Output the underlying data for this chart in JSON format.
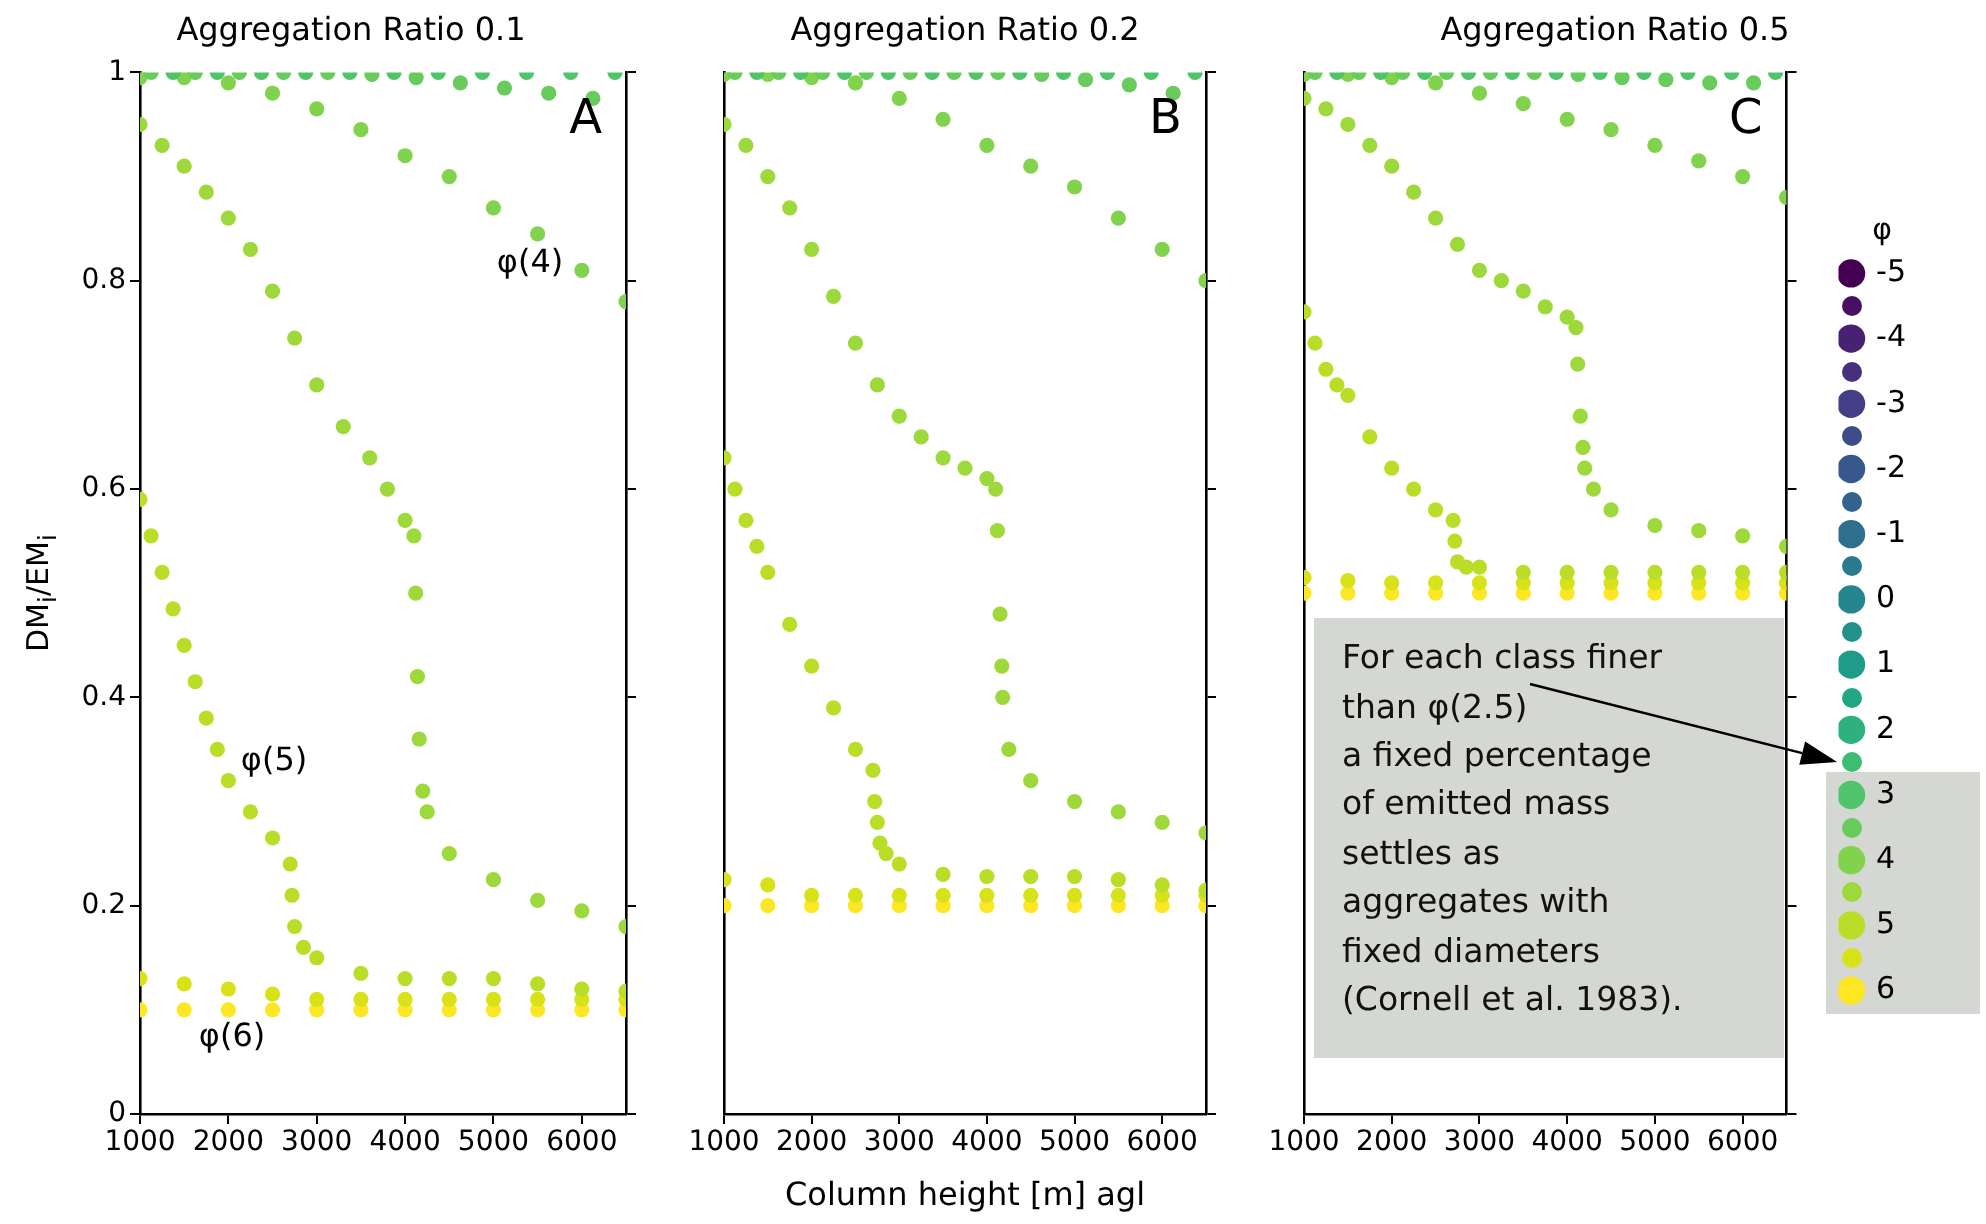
{
  "chart_data": [
    {
      "type": "scatter",
      "title": "Aggregation Ratio 0.1",
      "ylabel": "DM$_{i}$/EM$_{i}$",
      "x": [
        1000,
        1500,
        2000,
        2500,
        3000,
        3500,
        4000,
        4500,
        5000,
        5500,
        6000,
        6500
      ],
      "xlim": [
        1000,
        6500
      ],
      "xticks": [
        1000,
        2000,
        3000,
        4000,
        5000,
        6000
      ],
      "ylim": [
        0,
        1
      ],
      "yticks": [
        0.0,
        0.2,
        0.4,
        0.6,
        0.8,
        1.0
      ],
      "marker": "circle",
      "annotations": [
        "A",
        "φ(4)",
        "φ(5)",
        "φ(6)"
      ],
      "series": [
        {
          "color": "#50c46a",
          "x": [
            1375,
            1875,
            2375,
            2875,
            3375,
            3875,
            4375,
            4875,
            5375,
            5875,
            6375
          ],
          "values": [
            1,
            1,
            1,
            1,
            1,
            1,
            1,
            1,
            1,
            1,
            1
          ]
        },
        {
          "color": "#67cc5c",
          "x": [
            1125,
            1625,
            2125,
            2625,
            3125,
            3625,
            4125,
            4625,
            5125,
            5625,
            6125
          ],
          "values": [
            1,
            1,
            1,
            1,
            1,
            0.998,
            0.995,
            0.99,
            0.985,
            0.98,
            0.975
          ]
        },
        {
          "color": "#81d34d",
          "values": [
            0.995,
            0.995,
            0.99,
            0.98,
            0.965,
            0.945,
            0.92,
            0.9,
            0.87,
            0.845,
            0.81,
            0.78
          ]
        },
        {
          "color": "#9dd93b",
          "x": [
            1000,
            1250,
            1500,
            1750,
            2000,
            2250,
            2500,
            2750,
            3000,
            3300,
            3600,
            3800,
            4000,
            4100,
            4120,
            4140,
            4160,
            4200,
            4250,
            4500,
            5000,
            5500,
            6000,
            6500
          ],
          "values": [
            0.95,
            0.93,
            0.91,
            0.885,
            0.86,
            0.83,
            0.79,
            0.745,
            0.7,
            0.66,
            0.63,
            0.6,
            0.57,
            0.555,
            0.5,
            0.42,
            0.36,
            0.31,
            0.29,
            0.25,
            0.225,
            0.205,
            0.195,
            0.18
          ]
        },
        {
          "color": "#bade28",
          "x": [
            1000,
            1125,
            1250,
            1375,
            1500,
            1625,
            1750,
            1875,
            2000,
            2250,
            2500,
            2700,
            2720,
            2750,
            2850,
            3000,
            3500,
            4000,
            4500,
            5000,
            5500,
            6000,
            6500
          ],
          "values": [
            0.59,
            0.555,
            0.52,
            0.485,
            0.45,
            0.415,
            0.38,
            0.35,
            0.32,
            0.29,
            0.265,
            0.24,
            0.21,
            0.18,
            0.16,
            0.15,
            0.135,
            0.13,
            0.13,
            0.13,
            0.125,
            0.12,
            0.118
          ]
        },
        {
          "color": "#d8e219",
          "values": [
            0.13,
            0.125,
            0.12,
            0.115,
            0.11,
            0.11,
            0.11,
            0.11,
            0.11,
            0.11,
            0.11,
            0.11
          ]
        },
        {
          "color": "#fde725",
          "values": [
            0.1,
            0.1,
            0.1,
            0.1,
            0.1,
            0.1,
            0.1,
            0.1,
            0.1,
            0.1,
            0.1,
            0.1
          ]
        }
      ]
    },
    {
      "type": "scatter",
      "title": "Aggregation Ratio 0.2",
      "xlabel": "Column height [m] agl",
      "x": [
        1000,
        1500,
        2000,
        2500,
        3000,
        3500,
        4000,
        4500,
        5000,
        5500,
        6000,
        6500
      ],
      "xlim": [
        1000,
        6500
      ],
      "xticks": [
        1000,
        2000,
        3000,
        4000,
        5000,
        6000
      ],
      "ylim": [
        0,
        1
      ],
      "yticks": [
        0.0,
        0.2,
        0.4,
        0.6,
        0.8,
        1.0
      ],
      "tick_labels": "x",
      "marker": "circle",
      "annotations": [
        "B"
      ],
      "series": [
        {
          "color": "#50c46a",
          "x": [
            1375,
            1875,
            2375,
            2875,
            3375,
            3875,
            4375,
            4875,
            5375,
            5875,
            6375
          ],
          "values": [
            1,
            1,
            1,
            1,
            1,
            1,
            1,
            1,
            1,
            1,
            1
          ]
        },
        {
          "color": "#67cc5c",
          "x": [
            1125,
            1625,
            2125,
            2625,
            3125,
            3625,
            4125,
            4625,
            5125,
            5625,
            6125
          ],
          "values": [
            1,
            1,
            1,
            1,
            1,
            1,
            1,
            0.998,
            0.993,
            0.988,
            0.98
          ]
        },
        {
          "color": "#81d34d",
          "values": [
            0.998,
            0.998,
            0.995,
            0.99,
            0.975,
            0.955,
            0.93,
            0.91,
            0.89,
            0.86,
            0.83,
            0.8
          ]
        },
        {
          "color": "#9dd93b",
          "x": [
            1000,
            1250,
            1500,
            1750,
            2000,
            2250,
            2500,
            2750,
            3000,
            3250,
            3500,
            3750,
            4000,
            4100,
            4120,
            4150,
            4170,
            4180,
            4250,
            4500,
            5000,
            5500,
            6000,
            6500
          ],
          "values": [
            0.95,
            0.93,
            0.9,
            0.87,
            0.83,
            0.785,
            0.74,
            0.7,
            0.67,
            0.65,
            0.63,
            0.62,
            0.61,
            0.6,
            0.56,
            0.48,
            0.43,
            0.4,
            0.35,
            0.32,
            0.3,
            0.29,
            0.28,
            0.27
          ]
        },
        {
          "color": "#bade28",
          "x": [
            1000,
            1125,
            1250,
            1375,
            1500,
            1750,
            2000,
            2250,
            2500,
            2700,
            2720,
            2750,
            2780,
            2850,
            3000,
            3500,
            4000,
            4500,
            5000,
            5500,
            6000,
            6500
          ],
          "values": [
            0.63,
            0.6,
            0.57,
            0.545,
            0.52,
            0.47,
            0.43,
            0.39,
            0.35,
            0.33,
            0.3,
            0.28,
            0.26,
            0.25,
            0.24,
            0.23,
            0.228,
            0.228,
            0.228,
            0.225,
            0.22,
            0.215
          ]
        },
        {
          "color": "#d8e219",
          "values": [
            0.225,
            0.22,
            0.21,
            0.21,
            0.21,
            0.21,
            0.21,
            0.21,
            0.21,
            0.21,
            0.21,
            0.21
          ]
        },
        {
          "color": "#fde725",
          "values": [
            0.2,
            0.2,
            0.2,
            0.2,
            0.2,
            0.2,
            0.2,
            0.2,
            0.2,
            0.2,
            0.2,
            0.2
          ]
        }
      ]
    },
    {
      "type": "scatter",
      "title": "Aggregation Ratio 0.5",
      "x": [
        1000,
        1500,
        2000,
        2500,
        3000,
        3500,
        4000,
        4500,
        5000,
        5500,
        6000,
        6500
      ],
      "xlim": [
        1000,
        6500
      ],
      "xticks": [
        1000,
        2000,
        3000,
        4000,
        5000,
        6000
      ],
      "ylim": [
        0,
        1
      ],
      "yticks": [
        0.0,
        0.2,
        0.4,
        0.6,
        0.8,
        1.0
      ],
      "tick_labels": "x",
      "marker": "circle",
      "legend": "right",
      "legend_title": "φ",
      "annotations": [
        "C",
        "For each class finer\nthan φ(2.5)\na fixed percentage\nof emitted mass\nsettles as\naggregates with\nfixed diameters\n(Cornell et al. 1983)."
      ],
      "series": [
        {
          "name": "-5",
          "color": "#440154",
          "values": [
            null,
            null,
            null,
            null,
            null,
            null,
            null,
            null,
            null,
            null,
            null,
            null
          ]
        },
        {
          "color": "#471063",
          "values": [
            null,
            null,
            null,
            null,
            null,
            null,
            null,
            null,
            null,
            null,
            null,
            null
          ]
        },
        {
          "name": "-4",
          "color": "#482173",
          "values": [
            null,
            null,
            null,
            null,
            null,
            null,
            null,
            null,
            null,
            null,
            null,
            null
          ]
        },
        {
          "color": "#46307e",
          "values": [
            null,
            null,
            null,
            null,
            null,
            null,
            null,
            null,
            null,
            null,
            null,
            null
          ]
        },
        {
          "name": "-3",
          "color": "#433e85",
          "values": [
            null,
            null,
            null,
            null,
            null,
            null,
            null,
            null,
            null,
            null,
            null,
            null
          ]
        },
        {
          "color": "#3e4c8a",
          "values": [
            null,
            null,
            null,
            null,
            null,
            null,
            null,
            null,
            null,
            null,
            null,
            null
          ]
        },
        {
          "name": "-2",
          "color": "#38588c",
          "values": [
            null,
            null,
            null,
            null,
            null,
            null,
            null,
            null,
            null,
            null,
            null,
            null
          ]
        },
        {
          "color": "#33638d",
          "values": [
            null,
            null,
            null,
            null,
            null,
            null,
            null,
            null,
            null,
            null,
            null,
            null
          ]
        },
        {
          "name": "-1",
          "color": "#2e6f8e",
          "values": [
            null,
            null,
            null,
            null,
            null,
            null,
            null,
            null,
            null,
            null,
            null,
            null
          ]
        },
        {
          "color": "#297a8e",
          "values": [
            null,
            null,
            null,
            null,
            null,
            null,
            null,
            null,
            null,
            null,
            null,
            null
          ]
        },
        {
          "name": "0",
          "color": "#25858e",
          "values": [
            null,
            null,
            null,
            null,
            null,
            null,
            null,
            null,
            null,
            null,
            null,
            null
          ]
        },
        {
          "color": "#21918c",
          "values": [
            null,
            null,
            null,
            null,
            null,
            null,
            null,
            null,
            null,
            null,
            null,
            null
          ]
        },
        {
          "name": "1",
          "color": "#1f9c89",
          "values": [
            null,
            null,
            null,
            null,
            null,
            null,
            null,
            null,
            null,
            null,
            null,
            null
          ]
        },
        {
          "color": "#22a785",
          "values": [
            null,
            null,
            null,
            null,
            null,
            null,
            null,
            null,
            null,
            null,
            null,
            null
          ]
        },
        {
          "name": "2",
          "color": "#2db27d",
          "values": [
            null,
            null,
            null,
            null,
            null,
            null,
            null,
            null,
            null,
            null,
            null,
            null
          ]
        },
        {
          "color": "#3dbc74",
          "values": [
            null,
            null,
            null,
            null,
            null,
            null,
            null,
            null,
            null,
            null,
            null,
            null
          ]
        },
        {
          "name": "3",
          "color": "#50c46a",
          "x": [
            1375,
            1875,
            2375,
            2875,
            3375,
            3875,
            4375,
            4875,
            5375,
            5875,
            6375
          ],
          "values": [
            1,
            1,
            1,
            1,
            1,
            1,
            1,
            1,
            1,
            1,
            1
          ]
        },
        {
          "color": "#67cc5c",
          "x": [
            1125,
            1625,
            2125,
            2625,
            3125,
            3625,
            4125,
            4625,
            5125,
            5625,
            6125
          ],
          "values": [
            1,
            1,
            1,
            1,
            1,
            1,
            0.998,
            0.995,
            0.993,
            0.99,
            0.99
          ]
        },
        {
          "name": "4",
          "color": "#81d34d",
          "values": [
            0.998,
            0.998,
            0.995,
            0.99,
            0.98,
            0.97,
            0.955,
            0.945,
            0.93,
            0.915,
            0.9,
            0.88
          ]
        },
        {
          "color": "#9dd93b",
          "x": [
            1000,
            1250,
            1500,
            1750,
            2000,
            2250,
            2500,
            2750,
            3000,
            3250,
            3500,
            3750,
            4000,
            4100,
            4120,
            4150,
            4180,
            4200,
            4300,
            4500,
            5000,
            5500,
            6000,
            6500
          ],
          "values": [
            0.975,
            0.965,
            0.95,
            0.93,
            0.91,
            0.885,
            0.86,
            0.835,
            0.81,
            0.8,
            0.79,
            0.775,
            0.765,
            0.755,
            0.72,
            0.67,
            0.64,
            0.62,
            0.6,
            0.58,
            0.565,
            0.56,
            0.555,
            0.545
          ]
        },
        {
          "name": "5",
          "color": "#bade28",
          "x": [
            1000,
            1125,
            1250,
            1375,
            1500,
            1750,
            2000,
            2250,
            2500,
            2700,
            2720,
            2750,
            2850,
            3000,
            3500,
            4000,
            4500,
            5000,
            5500,
            6000,
            6500
          ],
          "values": [
            0.77,
            0.74,
            0.715,
            0.7,
            0.69,
            0.65,
            0.62,
            0.6,
            0.58,
            0.57,
            0.55,
            0.53,
            0.525,
            0.525,
            0.52,
            0.52,
            0.52,
            0.52,
            0.52,
            0.52,
            0.52
          ]
        },
        {
          "color": "#d8e219",
          "values": [
            0.515,
            0.512,
            0.51,
            0.51,
            0.51,
            0.51,
            0.51,
            0.51,
            0.51,
            0.51,
            0.51,
            0.51
          ]
        },
        {
          "name": "6",
          "color": "#fde725",
          "values": [
            0.5,
            0.5,
            0.5,
            0.5,
            0.5,
            0.5,
            0.5,
            0.5,
            0.5,
            0.5,
            0.5,
            0.5
          ]
        }
      ]
    }
  ]
}
